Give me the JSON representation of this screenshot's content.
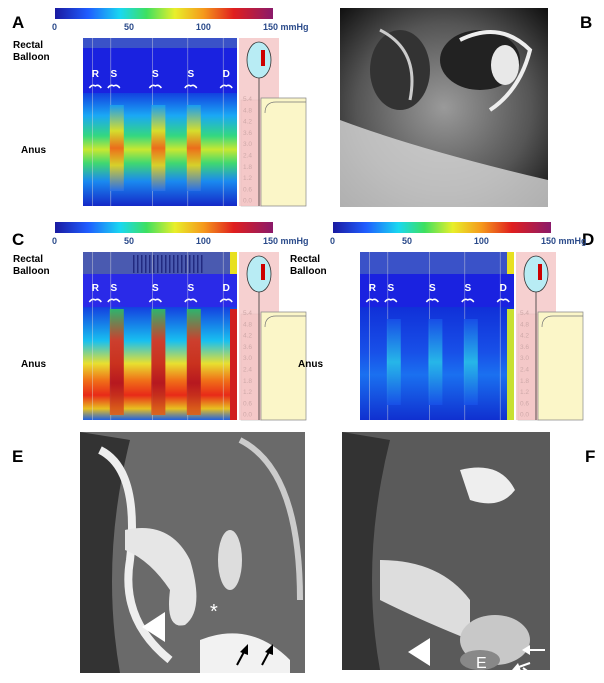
{
  "panels": [
    {
      "letter": "A",
      "colorbar": [
        "0",
        "50",
        "100",
        "150 mmHg"
      ],
      "rectal": "Rectal",
      "balloon": "Balloon",
      "anus": "Anus",
      "events": [
        "R",
        "S",
        "S",
        "S",
        "D"
      ],
      "scale": [
        "5.4",
        "4.8",
        "4.2",
        "3.6",
        "3.0",
        "2.4",
        "1.8",
        "1.2",
        "0.6",
        "0.0"
      ]
    },
    {
      "letter": "B"
    },
    {
      "letter": "C",
      "colorbar": [
        "0",
        "50",
        "100",
        "150 mmHg"
      ],
      "rectal": "Rectal",
      "balloon": "Balloon",
      "anus": "Anus",
      "events": [
        "R",
        "S",
        "S",
        "S",
        "D"
      ],
      "scale": [
        "5.4",
        "4.8",
        "4.2",
        "3.6",
        "3.0",
        "2.4",
        "1.8",
        "1.2",
        "0.6",
        "0.0"
      ]
    },
    {
      "letter": "D",
      "colorbar": [
        "0",
        "50",
        "100",
        "150 mmHg"
      ],
      "rectal": "Rectal",
      "balloon": "Balloon",
      "anus": "Anus",
      "events": [
        "R",
        "S",
        "S",
        "S",
        "D"
      ],
      "scale": [
        "5.4",
        "4.8",
        "4.2",
        "3.6",
        "3.0",
        "2.4",
        "1.8",
        "1.2",
        "0.6",
        "0.0"
      ]
    },
    {
      "letter": "E",
      "annotation": "*"
    },
    {
      "letter": "F",
      "annotation": "E"
    }
  ]
}
